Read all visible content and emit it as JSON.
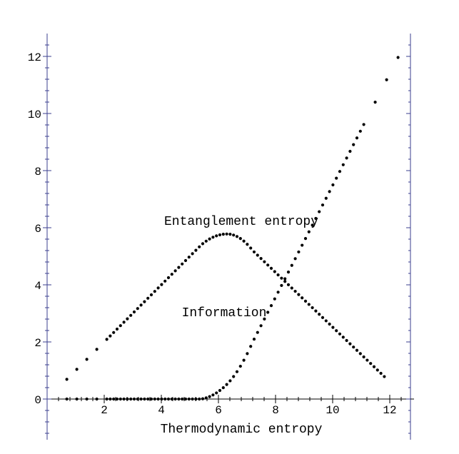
{
  "chart_data": {
    "type": "scatter",
    "title": "",
    "xlabel": "Thermodynamic entropy",
    "ylabel": "",
    "xlim": [
      0,
      12.8
    ],
    "ylim": [
      -1.4,
      12.8
    ],
    "xticks": [
      2,
      4,
      6,
      8,
      10,
      12
    ],
    "yticks": [
      0,
      2,
      4,
      6,
      8,
      10,
      12
    ],
    "grid": false,
    "annotations": [
      {
        "text": "Entanglement entropy",
        "x": 6.8,
        "y": 6.1
      },
      {
        "text": "Information",
        "x": 6.2,
        "y": 2.9
      }
    ],
    "series": [
      {
        "name": "Entanglement entropy",
        "description": "rises linearly from ~0.7 to a peak ~5.8 at x~6.3, then falls back to ~0.7 at x~11.9",
        "peak": [
          6.3,
          5.78
        ],
        "start": [
          0.69,
          0.69
        ],
        "end": [
          11.9,
          0.69
        ]
      },
      {
        "name": "Information",
        "description": "near zero until x~5, then rises steeply to ~12.6 at x~12.6",
        "start": [
          0.69,
          0
        ],
        "end": [
          12.6,
          12.6
        ]
      }
    ],
    "axis_color": "#3b3f8f",
    "point_color": "#000000"
  }
}
